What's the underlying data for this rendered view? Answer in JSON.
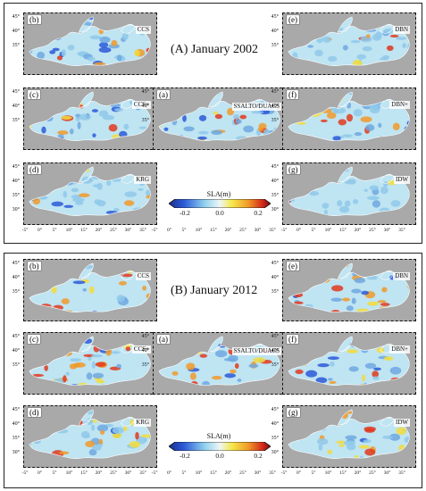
{
  "panels": [
    {
      "title": "(A) January 2002",
      "maps": [
        {
          "tag": "(b)",
          "method": "CCS"
        },
        {
          "tag": "(c)",
          "method": "CCS+"
        },
        {
          "tag": "(d)",
          "method": "KRG"
        },
        {
          "tag": "(a)",
          "method": "SSALTO/DUACS"
        },
        {
          "tag": "(e)",
          "method": "DBN"
        },
        {
          "tag": "(f)",
          "method": "DBN+"
        },
        {
          "tag": "(g)",
          "method": "IDW"
        }
      ],
      "colorbar": {
        "title": "SLA(m)",
        "ticks": [
          "-0.2",
          "0.0",
          "0.2"
        ]
      }
    },
    {
      "title": "(B) January 2012",
      "maps": [
        {
          "tag": "(b)",
          "method": "CCS"
        },
        {
          "tag": "(c)",
          "method": "CCS+"
        },
        {
          "tag": "(d)",
          "method": "KRG"
        },
        {
          "tag": "(a)",
          "method": "SSALTO/DUACS"
        },
        {
          "tag": "(e)",
          "method": "DBN"
        },
        {
          "tag": "(f)",
          "method": "DBN+"
        },
        {
          "tag": "(g)",
          "method": "IDW"
        }
      ],
      "colorbar": {
        "title": "SLA(m)",
        "ticks": [
          "-0.2",
          "0.0",
          "0.2"
        ]
      }
    }
  ],
  "axes": {
    "lat_ticks": [
      "45°",
      "40°",
      "35°",
      "30°"
    ],
    "lon_ticks": [
      "-5°",
      "0°",
      "5°",
      "10°",
      "15°",
      "20°",
      "25°",
      "30°",
      "35°"
    ]
  },
  "colors": {
    "land": "#a9a9a9",
    "ocean_low": "#2c5bd8",
    "ocean_mid": "#bfe4f2",
    "ocean_high": "#e03a1f"
  }
}
